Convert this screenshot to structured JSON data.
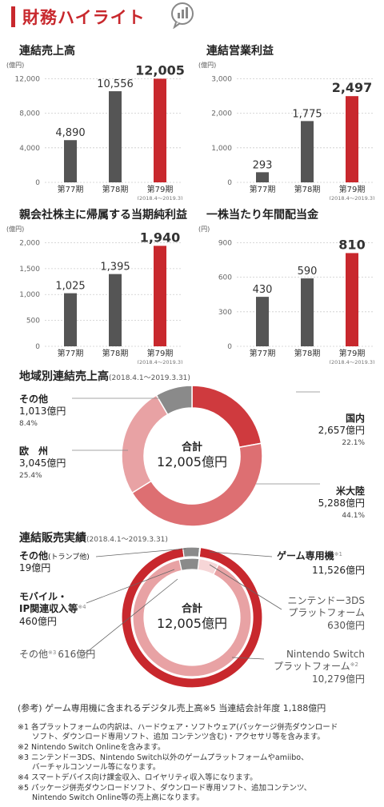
{
  "header": {
    "title": "財務ハイライト"
  },
  "colors": {
    "red": "#c8282d",
    "gray": "#555555",
    "pink": "#e8a2a4",
    "lightpink": "#f3c4c5"
  },
  "chart_data": [
    {
      "type": "bar",
      "title": "連結売上高",
      "unit": "(億円)",
      "categories": [
        "第77期",
        "第78期",
        "第79期"
      ],
      "values": [
        4890,
        10556,
        12005
      ],
      "value_labels": [
        "4,890",
        "10,556",
        "12,005"
      ],
      "yticks": [
        0,
        4000,
        8000,
        12000
      ],
      "ytick_labels": [
        "0",
        "4,000",
        "8,000",
        "12,000"
      ],
      "ylim": [
        0,
        12600
      ],
      "period_note": "(2018.4〜2019.3)",
      "highlight": 2
    },
    {
      "type": "bar",
      "title": "連結営業利益",
      "unit": "(億円)",
      "categories": [
        "第77期",
        "第78期",
        "第79期"
      ],
      "values": [
        293,
        1775,
        2497
      ],
      "value_labels": [
        "293",
        "1,775",
        "2,497"
      ],
      "yticks": [
        0,
        1000,
        2000,
        3000
      ],
      "ytick_labels": [
        "0",
        "1,000",
        "2,000",
        "3,000"
      ],
      "ylim": [
        0,
        3150
      ],
      "period_note": "(2018.4〜2019.3)",
      "highlight": 2
    },
    {
      "type": "bar",
      "title": "親会社株主に帰属する当期純利益",
      "unit": "(億円)",
      "categories": [
        "第77期",
        "第78期",
        "第79期"
      ],
      "values": [
        1025,
        1395,
        1940
      ],
      "value_labels": [
        "1,025",
        "1,395",
        "1,940"
      ],
      "yticks": [
        0,
        500,
        1000,
        1500,
        2000
      ],
      "ytick_labels": [
        "0",
        "500",
        "1,000",
        "1,500",
        "2,000"
      ],
      "ylim": [
        0,
        2100
      ],
      "period_note": "(2018.4〜2019.3)",
      "highlight": 2
    },
    {
      "type": "bar",
      "title": "一株当たり年間配当金",
      "unit": "(円)",
      "categories": [
        "第77期",
        "第78期",
        "第79期"
      ],
      "values": [
        430,
        590,
        810
      ],
      "value_labels": [
        "430",
        "590",
        "810"
      ],
      "yticks": [
        0,
        300,
        600,
        900
      ],
      "ytick_labels": [
        "0",
        "300",
        "600",
        "900"
      ],
      "ylim": [
        0,
        945
      ],
      "period_note": "(2018.4〜2019.3)",
      "highlight": 2
    },
    {
      "type": "pie",
      "title": "地域別連結売上高",
      "period": "(2018.4.1〜2019.3.31)",
      "center_label": "合計",
      "center_value": "12,005億円",
      "slices": [
        {
          "name": "国内",
          "value_label": "2,657億円",
          "pct": "22.1%",
          "value": 2657,
          "color": "#cf3a3e"
        },
        {
          "name": "米大陸",
          "value_label": "5,288億円",
          "pct": "44.1%",
          "value": 5288,
          "color": "#dd6f72"
        },
        {
          "name": "欧　州",
          "value_label": "3,045億円",
          "pct": "25.4%",
          "value": 3045,
          "color": "#e8a2a4"
        },
        {
          "name": "その他",
          "value_label": "1,013億円",
          "pct": "8.4%",
          "value": 1013,
          "color": "#8a8a8a"
        }
      ]
    },
    {
      "type": "pie",
      "title": "連結販売実績",
      "period": "(2018.4.1〜2019.3.31)",
      "center_label": "合計",
      "center_value": "12,005億円",
      "outer": [
        {
          "name": "ゲーム専用機",
          "note": "※1",
          "value_label": "11,526億円",
          "value": 11526,
          "color": "#c8282d"
        },
        {
          "name": "モバイル・IP関連収入等",
          "note": "※4",
          "value_label": "460億円",
          "value": 460,
          "color": "#8a8a8a"
        },
        {
          "name": "その他(トランプ他)",
          "value_label": "19億円",
          "value": 19,
          "color": "#f3c4c5"
        }
      ],
      "inner": [
        {
          "name": "ニンテンドー3DSプラットフォーム",
          "value_label": "630億円",
          "value": 630,
          "color": "#ffffff"
        },
        {
          "name": "Nintendo Switchプラットフォーム",
          "note": "※2",
          "value_label": "10,279億円",
          "value": 10279,
          "color": "#e8a2a4"
        },
        {
          "name": "その他",
          "note": "※3",
          "value_label": "616億円",
          "value": 616,
          "color": "#ffffff"
        }
      ]
    }
  ],
  "labels": {
    "other_trump": "その他",
    "other_trump_sub": "(トランプ他)",
    "other_trump_val": "19億円",
    "mobile_1": "モバイル・",
    "mobile_2": "IP関連収入等",
    "mobile_note": "※4",
    "mobile_val": "460億円",
    "other3": "その他",
    "other3_note": "※3",
    "other3_val": "616億円",
    "game": "ゲーム専用機",
    "game_note": "※1",
    "game_val": "11,526億円",
    "ds_1": "ニンテンドー3DS",
    "ds_2": "プラットフォーム",
    "ds_val": "630億円",
    "sw_1": "Nintendo Switch",
    "sw_2": "プラットフォーム",
    "sw_note": "※2",
    "sw_val": "10,279億円"
  },
  "footnotes": {
    "ref": "(参考) ゲーム専用機に含まれるデジタル売上高※5 当連結会計年度 1,188億円",
    "n1a": "※1 各プラットフォームの内訳は、ハードウェア・ソフトウェア(パッケージ併売ダウンロード",
    "n1b": "ソフト、ダウンロード専用ソフト、追加 コンテンツ含む)・アクセサリ等を含みます。",
    "n2": "※2 Nintendo Switch Onlineを含みます。",
    "n3a": "※3 ニンテンドー3DS、Nintendo Switch以外のゲームプラットフォームやamiibo、",
    "n3b": "バーチャルコンソール等になります。",
    "n4": "※4 スマートデバイス向け課金収入、ロイヤリティ収入等になります。",
    "n5a": "※5 パッケージ併売ダウンロードソフト、ダウンロード専用ソフト、追加コンテンツ、",
    "n5b": "Nintendo Switch Online等の売上高になります。"
  }
}
